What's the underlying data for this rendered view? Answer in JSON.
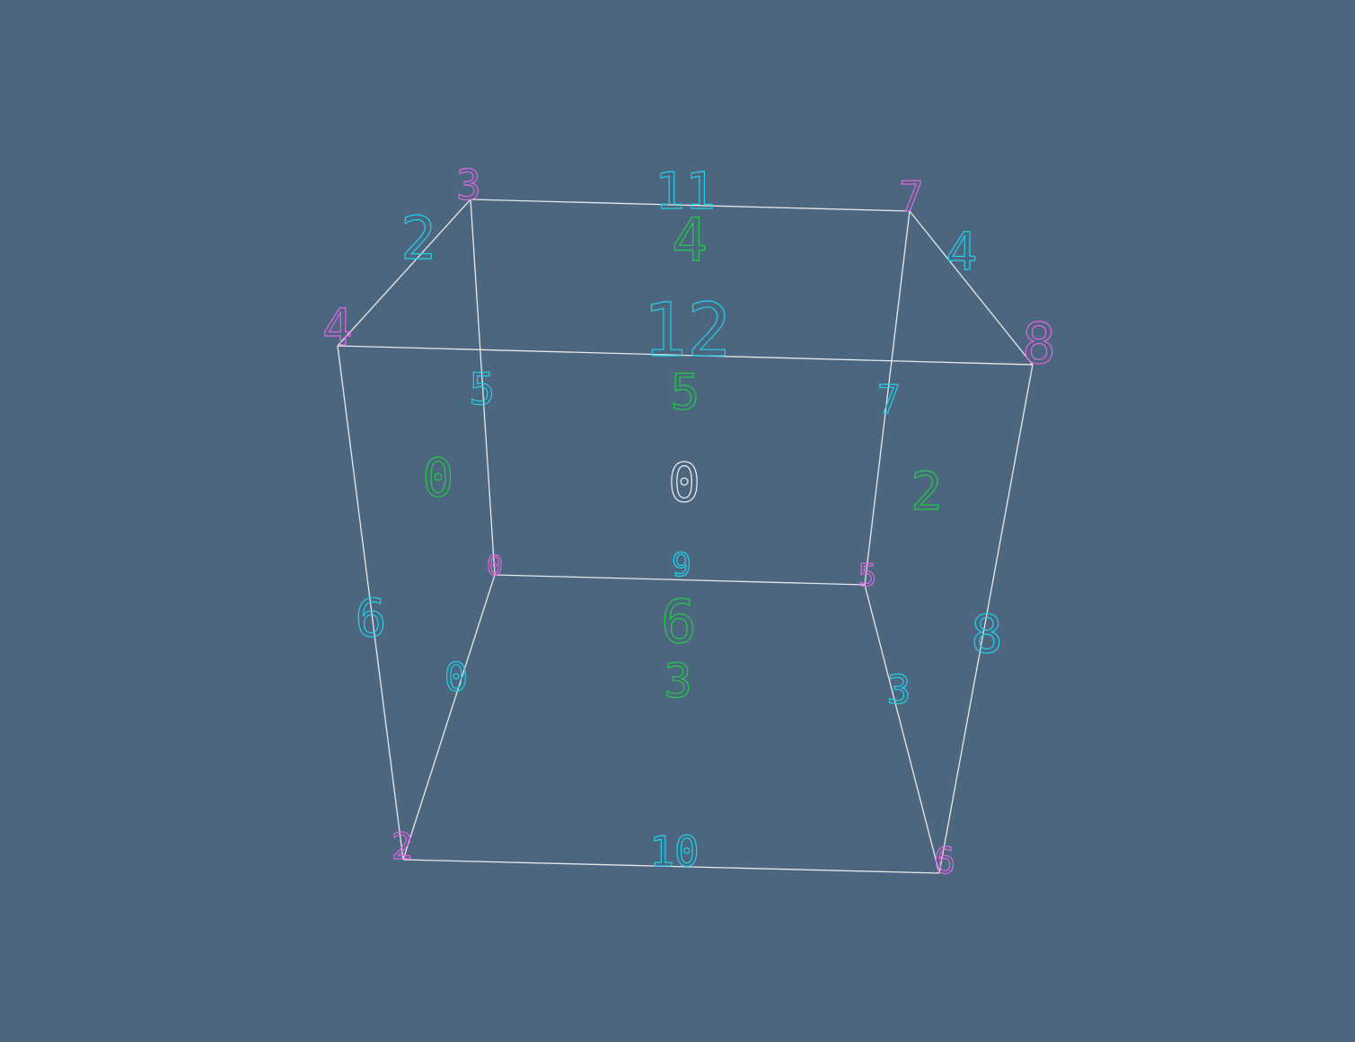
{
  "colors": {
    "background": "#4d6680",
    "edge": "#e8e8e8",
    "node_label": "#e066e0",
    "edge_label": "#22d0e8",
    "face_label": "#22cc44",
    "cell_label": "#f0f0f0"
  },
  "viewer": {
    "name": "mesh-wireframe-view",
    "mesh": {
      "nodes": [
        {
          "id": "0",
          "label": "0"
        },
        {
          "id": "2",
          "label": "2"
        },
        {
          "id": "3",
          "label": "3"
        },
        {
          "id": "4",
          "label": "4"
        },
        {
          "id": "5",
          "label": "5"
        },
        {
          "id": "6",
          "label": "6"
        },
        {
          "id": "7",
          "label": "7"
        },
        {
          "id": "8",
          "label": "8"
        }
      ],
      "edges": [
        {
          "from": "3",
          "to": "7",
          "label": "11"
        },
        {
          "from": "4",
          "to": "3",
          "label": "2"
        },
        {
          "from": "7",
          "to": "8",
          "label": "4"
        },
        {
          "from": "4",
          "to": "8",
          "label": "12"
        },
        {
          "from": "3",
          "to": "0",
          "label": "5"
        },
        {
          "from": "7",
          "to": "5",
          "label": "7"
        },
        {
          "from": "0",
          "to": "5",
          "label": "9"
        },
        {
          "from": "4",
          "to": "2",
          "label": "6"
        },
        {
          "from": "0",
          "to": "2",
          "label": "0"
        },
        {
          "from": "5",
          "to": "6",
          "label": "3"
        },
        {
          "from": "8",
          "to": "6",
          "label": "8"
        },
        {
          "from": "2",
          "to": "6",
          "label": "10"
        }
      ],
      "faces": [
        {
          "label": "4"
        },
        {
          "label": "5"
        },
        {
          "label": "0"
        },
        {
          "label": "2"
        },
        {
          "label": "6"
        },
        {
          "label": "3"
        }
      ],
      "cells": [
        {
          "label": "0"
        }
      ]
    }
  }
}
